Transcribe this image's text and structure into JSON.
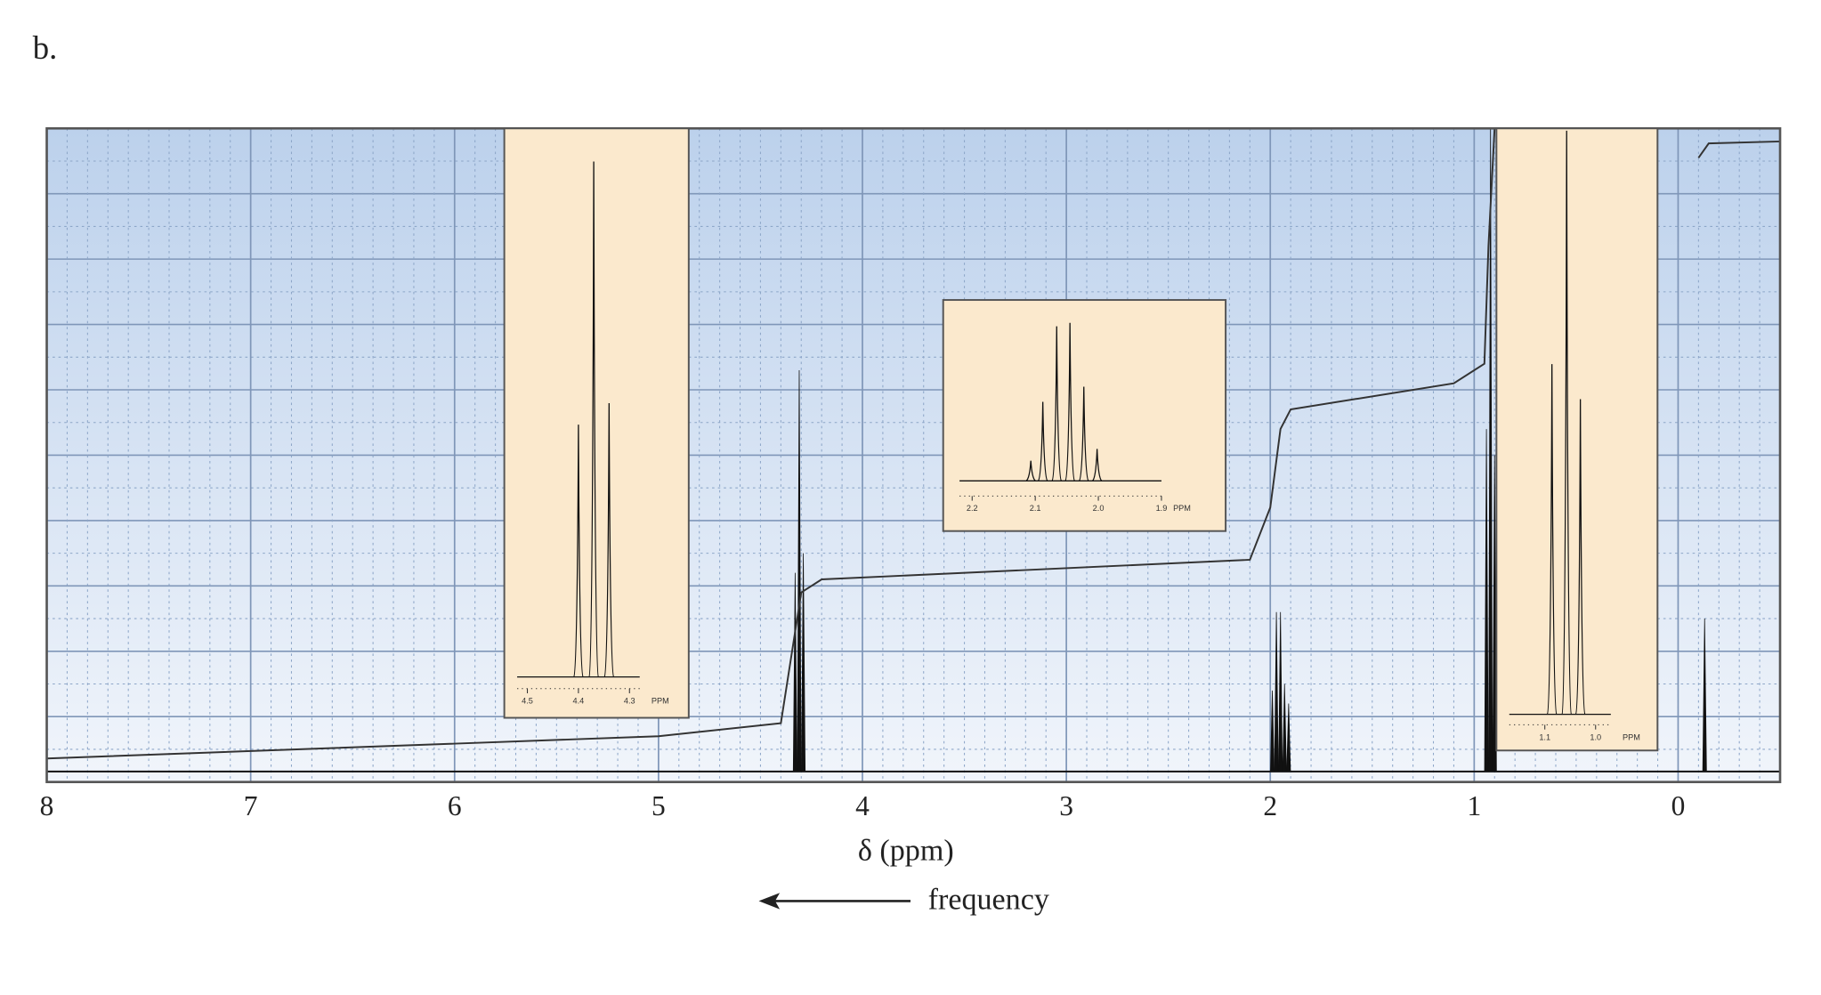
{
  "label": "b.",
  "chart_data": {
    "type": "spectrum",
    "xlabel": "δ (ppm)",
    "annotation": "frequency",
    "xlim": [
      8,
      -0.5
    ],
    "xticks": [
      8,
      7,
      6,
      5,
      4,
      3,
      2,
      1,
      0
    ],
    "ylim": [
      0,
      100
    ],
    "grid": true,
    "color": "#111111",
    "peaks": {
      "x": [
        4.33,
        4.31,
        4.29,
        1.99,
        1.97,
        1.95,
        1.93,
        1.91,
        0.94,
        0.92,
        0.9,
        -0.13
      ],
      "values": [
        32,
        63,
        35,
        14,
        26,
        26,
        15,
        12,
        54,
        100,
        50,
        25
      ]
    },
    "integral": {
      "x": [
        8,
        5,
        4.4,
        4.3,
        4.2,
        2.1,
        2.0,
        1.95,
        1.9,
        1.1,
        0.95,
        0.93,
        0.9,
        0.1,
        -0.1,
        -0.15,
        -0.5
      ],
      "values": [
        3.6,
        7,
        9,
        29,
        31,
        34,
        42,
        54,
        57,
        61,
        64,
        82,
        100,
        null,
        95.5,
        97.7,
        98
      ]
    },
    "insets": [
      {
        "xlim": [
          4.52,
          4.28
        ],
        "ylim": [
          0,
          100
        ],
        "xticks": [
          4.5,
          4.4,
          4.3
        ],
        "unit": "PPM",
        "peaks": {
          "x": [
            4.4,
            4.37,
            4.34
          ],
          "values": [
            47,
            96,
            51
          ]
        }
      },
      {
        "xlim": [
          2.22,
          1.9
        ],
        "ylim": [
          0,
          100
        ],
        "xticks": [
          2.2,
          2.1,
          {
            "value": 2,
            "label": "2.0"
          },
          1.9
        ],
        "unit": "PPM",
        "peaks": {
          "x": [
            2.107,
            2.088,
            2.066,
            2.045,
            2.023,
            2.002
          ],
          "values": [
            12,
            47,
            92,
            94,
            56,
            19
          ]
        }
      },
      {
        "xlim": [
          1.17,
          0.97
        ],
        "ylim": [
          0,
          100
        ],
        "xticks": [
          1.1,
          {
            "value": 1,
            "label": "1.0"
          }
        ],
        "unit": "PPM",
        "peaks": {
          "x": [
            1.086,
            1.057,
            1.03
          ],
          "values": [
            60,
            100,
            54
          ]
        }
      }
    ]
  }
}
